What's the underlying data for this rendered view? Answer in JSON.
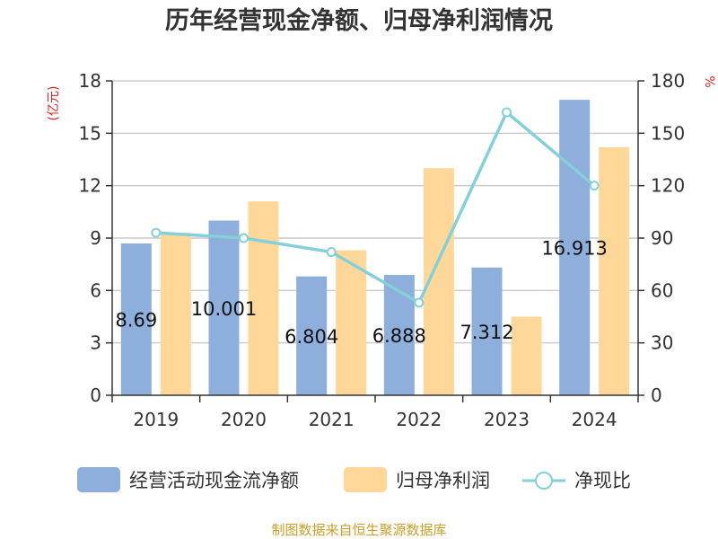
{
  "chart_data": {
    "type": "bar",
    "title": "历年经营现金净额、归母净利润情况",
    "categories": [
      "2019",
      "2020",
      "2021",
      "2022",
      "2023",
      "2024"
    ],
    "series": [
      {
        "name": "经营活动现金流净额",
        "type": "bar",
        "axis": "left",
        "color": "#8eaedc",
        "values": [
          8.69,
          10.001,
          6.804,
          6.888,
          7.312,
          16.913
        ],
        "labels": [
          "8.69",
          "10.001",
          "6.804",
          "6.888",
          "7.312",
          "16.913"
        ]
      },
      {
        "name": "归母净利润",
        "type": "bar",
        "axis": "left",
        "color": "#ffd899",
        "values": [
          9.3,
          11.1,
          8.3,
          13.0,
          4.5,
          14.2
        ]
      },
      {
        "name": "净现比",
        "type": "line",
        "axis": "right",
        "color": "#84d0d8",
        "values": [
          93,
          90,
          82,
          53,
          162,
          120
        ]
      }
    ],
    "left_axis": {
      "label": "(亿元)",
      "min": 0,
      "max": 18,
      "ticks": [
        0,
        3,
        6,
        9,
        12,
        15,
        18
      ]
    },
    "right_axis": {
      "label": "%",
      "min": 0,
      "max": 180,
      "ticks": [
        0,
        30,
        60,
        90,
        120,
        150,
        180
      ]
    },
    "grid": true,
    "legend_position": "bottom",
    "source": "制图数据来自恒生聚源数据库"
  }
}
